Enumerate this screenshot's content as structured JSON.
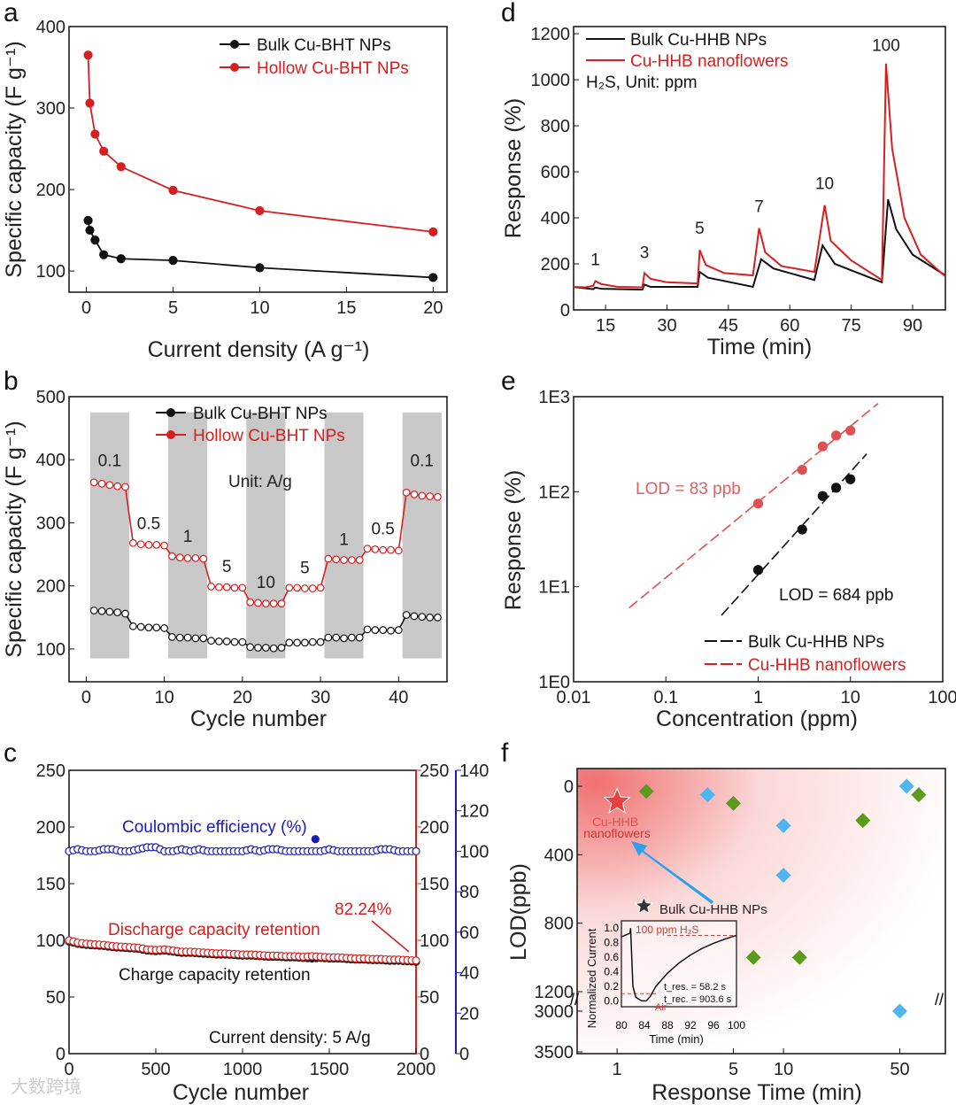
{
  "watermark": "大数跨境",
  "colors": {
    "red": "#d42020",
    "black": "#111111",
    "blue": "#1a1ab8",
    "gray": "#c8c8c8",
    "green": "#5a9a1e",
    "lightblue": "#4fb4ef"
  },
  "chart_data": [
    {
      "panel": "a",
      "type": "line",
      "xlabel": "Current density (A g⁻¹)",
      "ylabel": "Specific capacity (F g⁻¹)",
      "xticks": [
        0,
        5,
        10,
        15,
        20
      ],
      "yticks": [
        100,
        200,
        300,
        400
      ],
      "xlim": [
        -1,
        20.8
      ],
      "ylim": [
        74,
        400
      ],
      "legend": [
        "Bulk  Cu-BHT NPs",
        "Hollow  Cu-BHT NPs"
      ],
      "legend_position": "top-right",
      "series": [
        {
          "name": "Bulk  Cu-BHT NPs",
          "x": [
            0.1,
            0.2,
            0.5,
            1,
            2,
            5,
            10,
            20
          ],
          "y": [
            162,
            150,
            138,
            120,
            115,
            113,
            104,
            92
          ]
        },
        {
          "name": "Hollow  Cu-BHT NPs",
          "x": [
            0.1,
            0.2,
            0.5,
            1,
            2,
            5,
            10,
            20
          ],
          "y": [
            365,
            306,
            268,
            247,
            228,
            199,
            174,
            148
          ]
        }
      ]
    },
    {
      "panel": "b",
      "type": "line",
      "xlabel": "Cycle  number",
      "ylabel": "Specific capacity (F g⁻¹)",
      "xticks": [
        0,
        10,
        20,
        30,
        40
      ],
      "yticks": [
        100,
        200,
        300,
        400,
        500
      ],
      "xlim": [
        -2.2,
        46.2
      ],
      "ylim": [
        48,
        500
      ],
      "legend": [
        "Bulk  Cu-BHT NPs",
        "Hollow  Cu-BHT NPs"
      ],
      "unit_note": "Unit: A/g",
      "rate_labels": [
        {
          "t": "0.1",
          "c": 3,
          "v": 390
        },
        {
          "t": "0.5",
          "c": 8,
          "v": 290
        },
        {
          "t": "1",
          "c": 13,
          "v": 270
        },
        {
          "t": "5",
          "c": 18,
          "v": 222
        },
        {
          "t": "10",
          "c": 23,
          "v": 197
        },
        {
          "t": "5",
          "c": 28,
          "v": 220
        },
        {
          "t": "1",
          "c": 33,
          "v": 265
        },
        {
          "t": "0.5",
          "c": 38,
          "v": 282
        },
        {
          "t": "0.1",
          "c": 43,
          "v": 390
        }
      ],
      "shaded_cycles": [
        [
          0.5,
          5.5
        ],
        [
          10.5,
          15.5
        ],
        [
          20.5,
          25.5
        ],
        [
          30.5,
          35.5
        ],
        [
          40.5,
          45.5
        ]
      ],
      "series": [
        {
          "name": "Bulk  Cu-BHT NPs",
          "y": [
            161,
            160,
            159,
            158,
            156,
            136,
            135,
            134,
            134,
            133,
            119,
            118,
            118,
            117,
            117,
            113,
            112,
            112,
            111,
            111,
            103,
            102,
            102,
            101,
            102,
            110,
            110,
            110,
            111,
            111,
            118,
            118,
            117,
            118,
            118,
            131,
            130,
            130,
            129,
            130,
            154,
            152,
            151,
            150,
            150
          ]
        },
        {
          "name": "Hollow  Cu-BHT NPs",
          "y": [
            364,
            362,
            360,
            358,
            357,
            268,
            266,
            265,
            265,
            264,
            247,
            245,
            244,
            244,
            243,
            199,
            198,
            198,
            197,
            197,
            174,
            173,
            172,
            172,
            172,
            197,
            197,
            196,
            196,
            197,
            243,
            242,
            241,
            241,
            241,
            259,
            258,
            257,
            257,
            256,
            348,
            345,
            343,
            342,
            341
          ]
        }
      ]
    },
    {
      "panel": "c",
      "type": "scatter",
      "xlabel": "Cycle  number",
      "xticks": [
        0,
        500,
        1000,
        1500,
        2000
      ],
      "xlim": [
        0,
        2000
      ],
      "yticks_left": [
        0,
        50,
        100,
        150,
        200,
        250
      ],
      "yticks_right_red": [
        0,
        50,
        100,
        150,
        200,
        250
      ],
      "yticks_right_blue": [
        0,
        20,
        40,
        60,
        80,
        100,
        120,
        140
      ],
      "labels": {
        "ce": "Coulombic efficiency (%)",
        "discharge": "Discharge capacity retention",
        "charge": "Charge capacity retention",
        "final": "82.24%",
        "current": "Current density: 5  A/g"
      },
      "x": [
        0,
        50,
        100,
        150,
        200,
        250,
        300,
        350,
        400,
        450,
        500,
        550,
        600,
        650,
        700,
        750,
        800,
        850,
        900,
        950,
        1000,
        1050,
        1100,
        1150,
        1200,
        1250,
        1300,
        1350,
        1400,
        1450,
        1500,
        1550,
        1600,
        1650,
        1700,
        1750,
        1800,
        1850,
        1900,
        1950,
        2000
      ],
      "series": [
        {
          "name": "Coulombic efficiency (%)",
          "axis": "blue",
          "y": [
            100,
            101,
            100,
            100,
            101,
            101,
            100,
            100,
            101,
            102,
            102,
            100,
            100,
            101,
            100,
            101,
            100,
            100,
            100,
            100,
            100,
            101,
            100,
            101,
            101,
            100,
            100,
            100,
            100,
            100,
            101,
            100,
            100,
            100,
            100,
            100,
            101,
            101,
            100,
            100,
            100
          ]
        },
        {
          "name": "Discharge capacity retention",
          "axis": "red",
          "y": [
            100,
            98,
            97,
            96.5,
            96,
            95,
            94.5,
            94,
            93.5,
            92,
            91.5,
            92,
            91,
            90,
            90,
            89.5,
            89,
            88.5,
            88.5,
            88,
            87.5,
            87.5,
            87,
            86.5,
            86.5,
            86,
            86,
            85.5,
            86,
            85.5,
            85,
            85,
            84.5,
            84,
            84,
            83.5,
            83.5,
            83,
            83,
            82.5,
            82.24
          ]
        },
        {
          "name": "Charge capacity retention",
          "axis": "left",
          "y": [
            99,
            97,
            96,
            95.5,
            95,
            94,
            93.5,
            93,
            92.5,
            91,
            90.5,
            91,
            90,
            89,
            89,
            88.5,
            88,
            87.5,
            87.5,
            87,
            86.5,
            86.5,
            86,
            85.5,
            85.5,
            85,
            85,
            84.5,
            84,
            84.5,
            84,
            84,
            83.5,
            83,
            83,
            82.5,
            82.5,
            82,
            82,
            81.5,
            81.2
          ]
        }
      ],
      "outlier": {
        "x": 1420,
        "y": 106
      }
    },
    {
      "panel": "d",
      "type": "line",
      "xlabel": "Time (min)",
      "ylabel": "Response (%)",
      "xticks": [
        15,
        30,
        45,
        60,
        75,
        90
      ],
      "yticks": [
        0,
        200,
        400,
        600,
        800,
        1000,
        1200
      ],
      "xlim": [
        7.2,
        98
      ],
      "ylim": [
        0,
        1231
      ],
      "legend": [
        "Bulk Cu-HHB NPs",
        "Cu-HHB nanoflowers"
      ],
      "note": "H₂S, Unit: ppm",
      "peak_labels": [
        {
          "t": "1",
          "x": 12.5,
          "y": 195
        },
        {
          "t": "3",
          "x": 24.5,
          "y": 225
        },
        {
          "t": "5",
          "x": 38,
          "y": 330
        },
        {
          "t": "7",
          "x": 52.5,
          "y": 425
        },
        {
          "t": "10",
          "x": 68.5,
          "y": 525
        },
        {
          "t": "100",
          "x": 83.5,
          "y": 1125
        }
      ],
      "series": [
        {
          "name": "Bulk Cu-HHB NPs",
          "points": [
            [
              7,
              100
            ],
            [
              12,
              90
            ],
            [
              12.5,
              97
            ],
            [
              14,
              92
            ],
            [
              24,
              88
            ],
            [
              24.5,
              110
            ],
            [
              26,
              100
            ],
            [
              37.5,
              100
            ],
            [
              38,
              165
            ],
            [
              40,
              140
            ],
            [
              51,
              100
            ],
            [
              53,
              220
            ],
            [
              56,
              180
            ],
            [
              66,
              130
            ],
            [
              68,
              280
            ],
            [
              71,
              200
            ],
            [
              82.5,
              120
            ],
            [
              84,
              480
            ],
            [
              86,
              350
            ],
            [
              90,
              240
            ],
            [
              98,
              150
            ]
          ]
        },
        {
          "name": "Cu-HHB nanoflowers",
          "points": [
            [
              7,
              100
            ],
            [
              10,
              98
            ],
            [
              12,
              105
            ],
            [
              12.5,
              125
            ],
            [
              14,
              112
            ],
            [
              18,
              100
            ],
            [
              24,
              98
            ],
            [
              24.5,
              160
            ],
            [
              26,
              135
            ],
            [
              30,
              120
            ],
            [
              37.5,
              115
            ],
            [
              38,
              260
            ],
            [
              39.5,
              195
            ],
            [
              44,
              160
            ],
            [
              51,
              150
            ],
            [
              52.5,
              355
            ],
            [
              54,
              250
            ],
            [
              58,
              190
            ],
            [
              66,
              165
            ],
            [
              68.5,
              455
            ],
            [
              70,
              300
            ],
            [
              75,
              215
            ],
            [
              82.5,
              130
            ],
            [
              83.5,
              1070
            ],
            [
              85,
              700
            ],
            [
              88,
              400
            ],
            [
              92,
              240
            ],
            [
              98,
              145
            ]
          ]
        }
      ]
    },
    {
      "panel": "e",
      "type": "scatter",
      "xlabel": "Concentration (ppm)",
      "ylabel": "Response (%)",
      "xscale": "log",
      "yscale": "log",
      "xticks": [
        {
          "v": 0.01,
          "t": "0.01"
        },
        {
          "v": 0.1,
          "t": "0.1"
        },
        {
          "v": 1,
          "t": "1"
        },
        {
          "v": 10,
          "t": "10"
        },
        {
          "v": 100,
          "t": "100"
        }
      ],
      "yticks": [
        {
          "v": 1,
          "t": "1E0"
        },
        {
          "v": 10,
          "t": "1E1"
        },
        {
          "v": 100,
          "t": "1E2"
        },
        {
          "v": 1000,
          "t": "1E3"
        }
      ],
      "legend": [
        "Bulk Cu-HHB NPs",
        "Cu-HHB nanoflowers"
      ],
      "lod_nano": "LOD = 83 ppb",
      "lod_bulk": "LOD = 684 ppb",
      "series": [
        {
          "name": "Bulk Cu-HHB NPs",
          "x": [
            1,
            3,
            5,
            7,
            10
          ],
          "y": [
            15,
            40,
            90,
            110,
            135
          ],
          "fit": [
            [
              0.4,
              5
            ],
            [
              15,
              250
            ]
          ]
        },
        {
          "name": "Cu-HHB nanoflowers",
          "x": [
            1,
            3,
            5,
            7,
            10
          ],
          "y": [
            75,
            170,
            300,
            390,
            440
          ],
          "fit": [
            [
              0.04,
              6
            ],
            [
              20,
              850
            ]
          ]
        }
      ]
    },
    {
      "panel": "f",
      "type": "scatter",
      "xlabel": "Response Time (min)",
      "ylabel": "LOD(ppb)",
      "xscale": "log",
      "xticks": [
        1,
        5,
        10,
        50
      ],
      "yticks": [
        0,
        400,
        800,
        1200,
        3000,
        3500
      ],
      "y_break": [
        1200,
        3000
      ],
      "labels": {
        "nano": "Cu-HHB",
        "nano2": "nanoflowers",
        "bulk": "Bulk Cu-HHB NPs"
      },
      "stars": [
        {
          "name": "Cu-HHB nanoflowers",
          "x": 1,
          "y": 90
        },
        {
          "name": "Bulk Cu-HHB NPs",
          "x": 1.45,
          "y": 700
        }
      ],
      "green": {
        "x": [
          1.5,
          5,
          6.6,
          12.5,
          30,
          65
        ],
        "y": [
          30,
          100,
          1000,
          1000,
          200,
          50
        ]
      },
      "blue": {
        "x": [
          3.5,
          10,
          10,
          55,
          50
        ],
        "y": [
          50,
          230,
          520,
          0,
          3000
        ]
      },
      "inset": {
        "xlabel": "Time (min)",
        "ylabel": "Normalized Current",
        "xticks": [
          80,
          84,
          88,
          92,
          96,
          100
        ],
        "yticks": [
          0.0,
          0.2,
          0.4,
          0.6,
          0.8,
          1.0
        ],
        "gas": "100 ppm H₂S",
        "air": "Air",
        "tres": "t_res. = 58.2 s",
        "trec": "t_rec. = 903.6 s",
        "points": [
          [
            80,
            0.88
          ],
          [
            81.5,
            0.93
          ],
          [
            81.6,
            1.0
          ],
          [
            81.8,
            0.6
          ],
          [
            82,
            0.2
          ],
          [
            82.5,
            0.05
          ],
          [
            83.5,
            0.0
          ],
          [
            84.3,
            0.0
          ],
          [
            85,
            0.06
          ],
          [
            86,
            0.2
          ],
          [
            88,
            0.38
          ],
          [
            90,
            0.52
          ],
          [
            92,
            0.63
          ],
          [
            94,
            0.72
          ],
          [
            96,
            0.79
          ],
          [
            98,
            0.85
          ],
          [
            100,
            0.9
          ]
        ]
      }
    }
  ]
}
